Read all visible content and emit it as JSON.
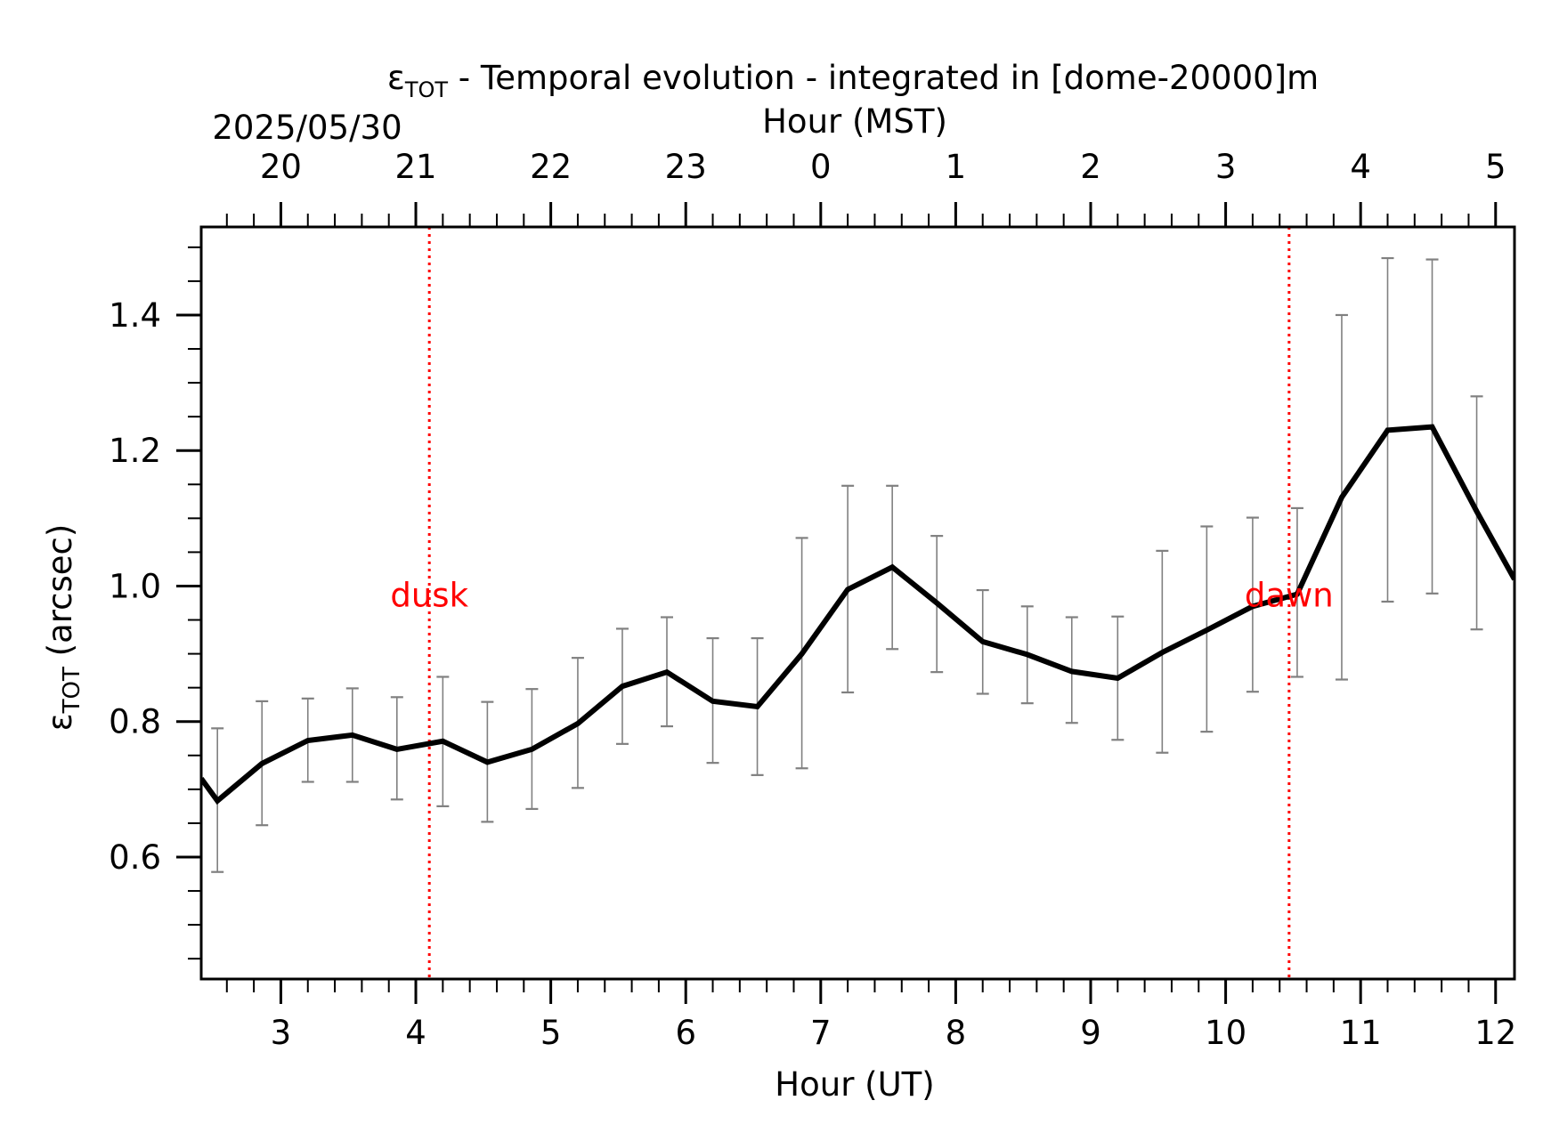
{
  "chart_data": {
    "type": "line",
    "title_main": "ε",
    "title_sub": "TOT",
    "title_rest": " - Temporal evolution - integrated in [dome-20000]m",
    "date_label": "2025/05/30",
    "xlabel": "Hour (UT)",
    "top_xlabel": "Hour (MST)",
    "ylabel_main": "ε",
    "ylabel_sub": "TOT",
    "ylabel_rest": " (arcsec)",
    "xlim": [
      2.41,
      12.14
    ],
    "ylim": [
      0.42,
      1.53
    ],
    "x_ticks": [
      3,
      4,
      5,
      6,
      7,
      8,
      9,
      10,
      11,
      12
    ],
    "x_tick_labels": [
      "3",
      "4",
      "5",
      "6",
      "7",
      "8",
      "9",
      "10",
      "11",
      "12"
    ],
    "x_minor_step": 0.2,
    "top_ticks": [
      3,
      4,
      5,
      6,
      7,
      8,
      9,
      10,
      11,
      12
    ],
    "top_tick_labels": [
      "20",
      "21",
      "22",
      "23",
      "0",
      "1",
      "2",
      "3",
      "4",
      "5"
    ],
    "y_ticks": [
      0.6,
      0.8,
      1.0,
      1.2,
      1.4
    ],
    "y_tick_labels": [
      "0.6",
      "0.8",
      "1.0",
      "1.2",
      "1.4"
    ],
    "y_minor_step": 0.05,
    "grid": false,
    "line_color": "#000000",
    "error_color": "#808080",
    "annotation_color": "#ff0000",
    "series": [
      {
        "x": [
          2.41,
          2.53,
          2.86,
          3.2,
          3.53,
          3.86,
          4.2,
          4.53,
          4.86,
          5.2,
          5.53,
          5.86,
          6.2,
          6.53,
          6.86,
          7.2,
          7.53,
          7.86,
          8.2,
          8.53,
          8.86,
          9.2,
          9.53,
          9.86,
          10.2,
          10.53,
          10.86,
          11.2,
          11.53,
          11.86,
          12.14
        ],
        "y": [
          0.716,
          0.683,
          0.738,
          0.772,
          0.78,
          0.759,
          0.771,
          0.74,
          0.759,
          0.797,
          0.852,
          0.873,
          0.83,
          0.822,
          0.9,
          0.995,
          1.028,
          0.975,
          0.918,
          0.899,
          0.874,
          0.864,
          0.902,
          0.935,
          0.97,
          0.988,
          1.131,
          1.23,
          1.235,
          1.11,
          1.01
        ]
      }
    ],
    "errorbars": {
      "x": [
        2.53,
        2.86,
        3.2,
        3.53,
        3.86,
        4.2,
        4.53,
        4.86,
        5.2,
        5.53,
        5.86,
        6.2,
        6.53,
        6.86,
        7.2,
        7.53,
        7.86,
        8.2,
        8.53,
        8.86,
        9.2,
        9.53,
        9.86,
        10.2,
        10.53,
        10.86,
        11.2,
        11.53,
        11.86
      ],
      "low": [
        0.578,
        0.647,
        0.711,
        0.711,
        0.685,
        0.675,
        0.652,
        0.671,
        0.702,
        0.767,
        0.793,
        0.739,
        0.721,
        0.731,
        0.843,
        0.907,
        0.873,
        0.841,
        0.827,
        0.798,
        0.773,
        0.754,
        0.785,
        0.844,
        0.866,
        0.862,
        0.977,
        0.989,
        0.936
      ],
      "high": [
        0.79,
        0.83,
        0.834,
        0.849,
        0.836,
        0.866,
        0.829,
        0.848,
        0.894,
        0.937,
        0.954,
        0.923,
        0.923,
        1.071,
        1.148,
        1.148,
        1.074,
        0.994,
        0.97,
        0.954,
        0.955,
        1.052,
        1.088,
        1.101,
        1.115,
        1.4,
        1.484,
        1.482,
        1.28
      ]
    },
    "vlines": [
      {
        "x": 4.1,
        "label": "dusk"
      },
      {
        "x": 10.47,
        "label": "dawn"
      }
    ],
    "vline_label_y": 0.97
  }
}
